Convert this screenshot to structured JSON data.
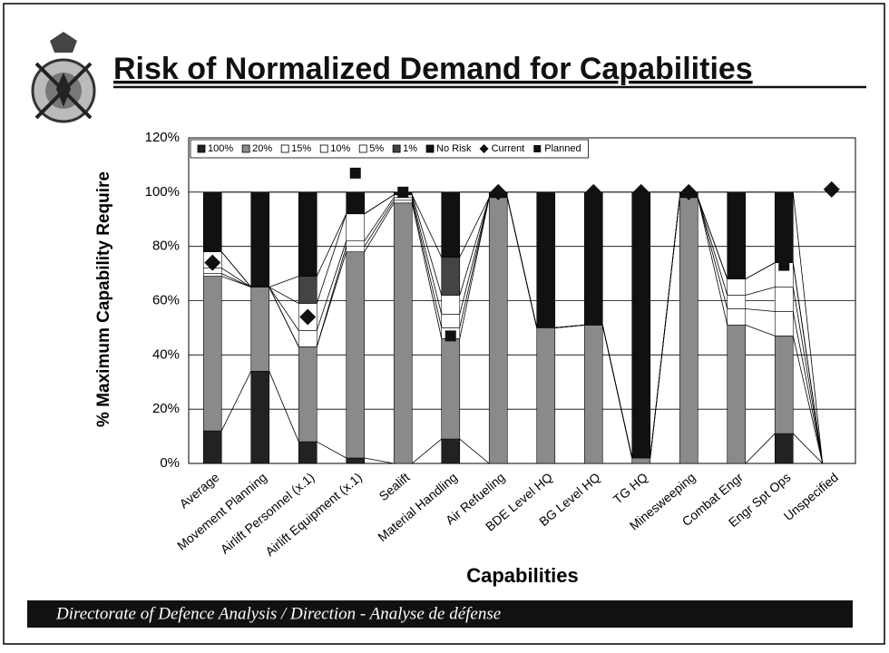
{
  "chart_data": {
    "type": "bar",
    "stacked": true,
    "title": "Risk of Normalized Demand for Capabilities",
    "ylabel": "% Maximum Capability Require",
    "xlabel": "Capabilities",
    "categories": [
      "Average",
      "Movement Planning",
      "Airlift Personnel (x.1)",
      "Airlift Equipment (x.1)",
      "Sealift",
      "Material Handling",
      "Air Refueling",
      "BDE Level HQ",
      "BG Level HQ",
      "TG HQ",
      "Minesweeping",
      "Combat Engr",
      "Engr Spt Ops",
      "Unspecified"
    ],
    "series": [
      {
        "name": "100%",
        "color": "#222222",
        "values": [
          12,
          34,
          8,
          2,
          0,
          9,
          0,
          0,
          0,
          0,
          0,
          0,
          11,
          0
        ]
      },
      {
        "name": "20%",
        "color": "#8a8a8a",
        "values": [
          57,
          31,
          35,
          76,
          96,
          37,
          98,
          50,
          51,
          2,
          98,
          51,
          36,
          0
        ]
      },
      {
        "name": "15%",
        "color": "#ffffff",
        "values": [
          1,
          0,
          0,
          2,
          1,
          4,
          0,
          0,
          0,
          0,
          0,
          6,
          9,
          0
        ]
      },
      {
        "name": "10%",
        "color": "#ffffff",
        "values": [
          2,
          0,
          6,
          2,
          1,
          5,
          0,
          0,
          0,
          0,
          0,
          5,
          9,
          0
        ]
      },
      {
        "name": "5%",
        "color": "#ffffff",
        "values": [
          6,
          0,
          10,
          10,
          1,
          7,
          0,
          0,
          0,
          0,
          0,
          6,
          9,
          0
        ]
      },
      {
        "name": "1%",
        "color": "#444444",
        "values": [
          0,
          0,
          10,
          0,
          0,
          14,
          0,
          0,
          0,
          0,
          0,
          0,
          0,
          0
        ]
      },
      {
        "name": "No Risk",
        "color": "#111111",
        "values": [
          22,
          35,
          31,
          8,
          1,
          24,
          2,
          50,
          49,
          98,
          2,
          32,
          26,
          0
        ]
      }
    ],
    "markers": [
      {
        "name": "Current",
        "color": "#111111",
        "marker": "diamond",
        "values": [
          74,
          null,
          54,
          null,
          null,
          null,
          100,
          null,
          100,
          100,
          100,
          null,
          null,
          101
        ]
      },
      {
        "name": "Planned",
        "color": "#111111",
        "marker": "square",
        "values": [
          null,
          null,
          null,
          107,
          100,
          47,
          null,
          null,
          null,
          null,
          null,
          null,
          73,
          null
        ]
      }
    ],
    "ylim": [
      0,
      120
    ],
    "yticks": [
      {
        "value": 0,
        "label": "0%"
      },
      {
        "value": 20,
        "label": "20%"
      },
      {
        "value": 40,
        "label": "40%"
      },
      {
        "value": 60,
        "label": "60%"
      },
      {
        "value": 80,
        "label": "80%"
      },
      {
        "value": 100,
        "label": "100%"
      },
      {
        "value": 120,
        "label": "120%"
      }
    ],
    "grid": true,
    "legend": "top"
  },
  "footer": "Directorate of Defence Analysis / Direction - Analyse de défense"
}
